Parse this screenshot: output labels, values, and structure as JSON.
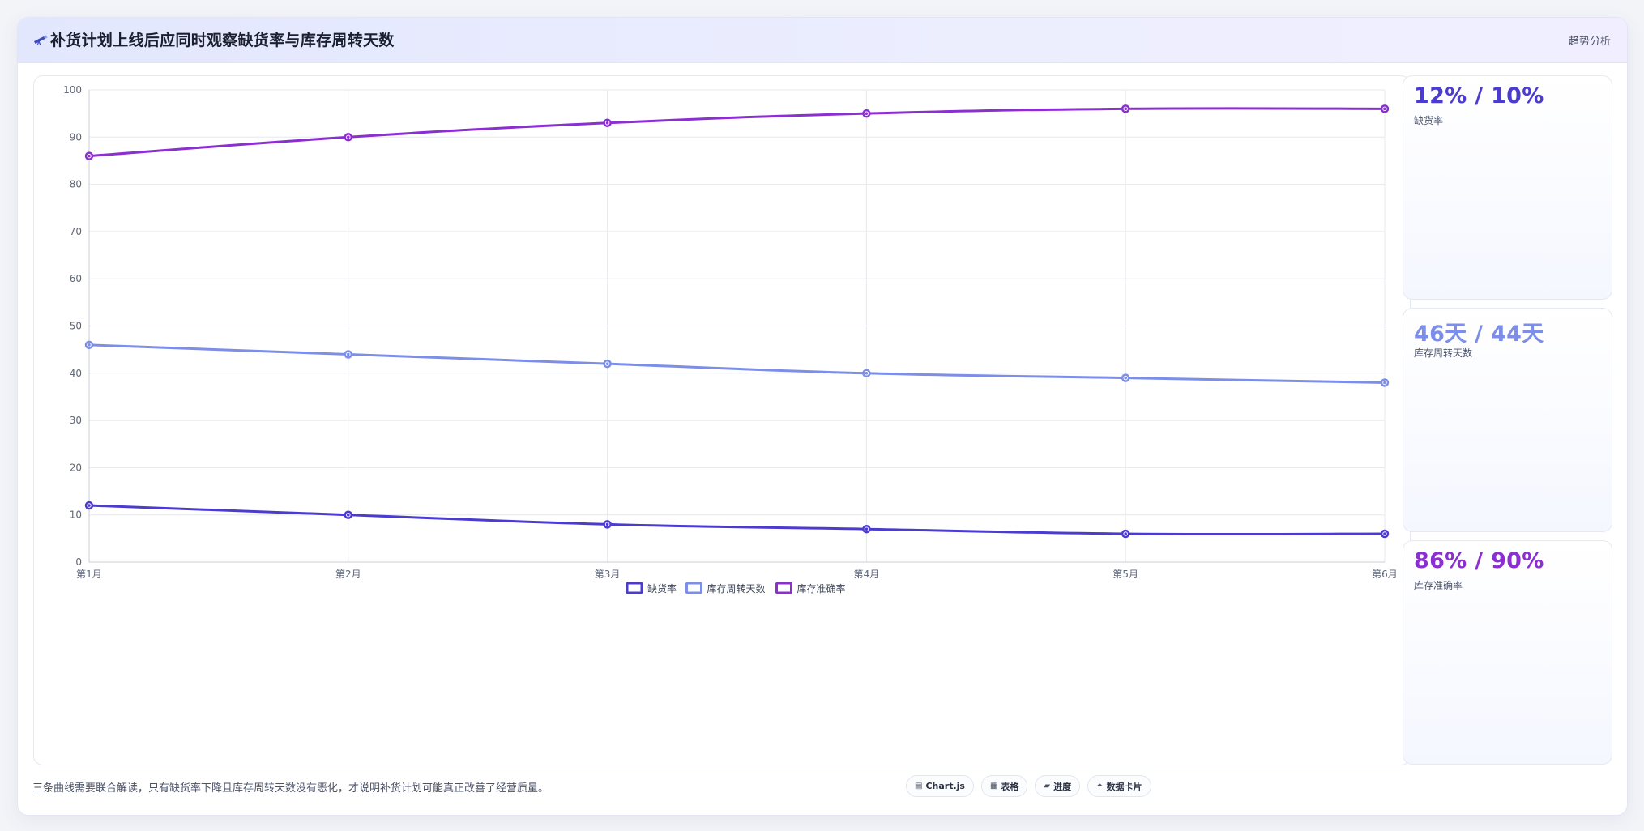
{
  "header": {
    "icon": "telescope-icon",
    "title": "补货计划上线后应同时观察缺货率与库存周转天数",
    "tag": "趋势分析"
  },
  "chart_data": {
    "type": "line",
    "categories": [
      "第1月",
      "第2月",
      "第3月",
      "第4月",
      "第5月",
      "第6月"
    ],
    "ylim": [
      0,
      100
    ],
    "yticks": [
      0,
      10,
      20,
      30,
      40,
      50,
      60,
      70,
      80,
      90,
      100
    ],
    "grid": true,
    "legend_position": "bottom",
    "series": [
      {
        "name": "缺货率",
        "color": "#4b3ccf",
        "values": [
          12,
          10,
          8,
          7,
          6,
          6
        ]
      },
      {
        "name": "库存周转天数",
        "color": "#7c8ee8",
        "values": [
          46,
          44,
          42,
          40,
          39,
          38
        ]
      },
      {
        "name": "库存准确率",
        "color": "#8b2fd0",
        "values": [
          86,
          90,
          93,
          95,
          96,
          96
        ]
      }
    ]
  },
  "kpis": [
    {
      "value": "12% / 10%",
      "label": "缺货率",
      "color": "#4b3ccf"
    },
    {
      "value": "46天 / 44天",
      "label": "库存周转天数",
      "color": "#7c8ee8"
    },
    {
      "value": "86% / 90%",
      "label": "库存准确率",
      "color": "#8b2fd0"
    }
  ],
  "footer": {
    "note": "三条曲线需要联合解读，只有缺货率下降且库存周转天数没有恶化，才说明补货计划可能真正改善了经营质量。",
    "chips": [
      {
        "icon": "chart-icon",
        "glyph": "▤",
        "label": "Chart.js"
      },
      {
        "icon": "table-icon",
        "glyph": "▦",
        "label": "表格"
      },
      {
        "icon": "progress-icon",
        "glyph": "▰",
        "label": "进度"
      },
      {
        "icon": "sparkle-icon",
        "glyph": "✦",
        "label": "数据卡片"
      }
    ]
  }
}
